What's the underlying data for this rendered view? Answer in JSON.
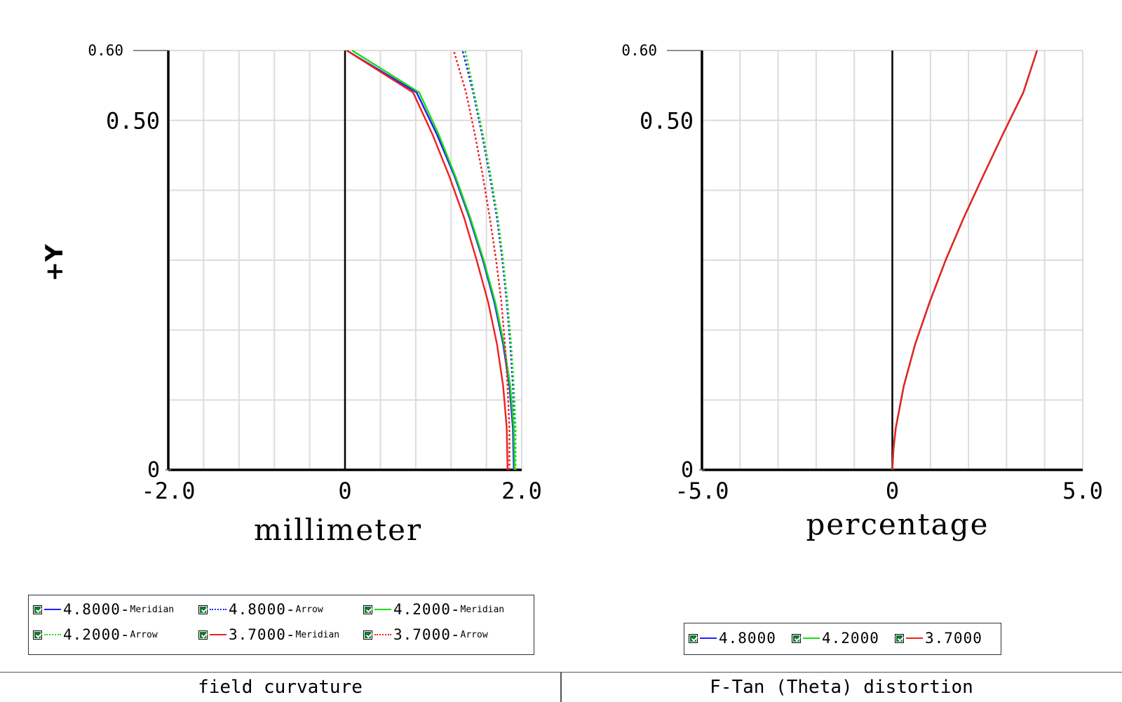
{
  "chart_data": [
    {
      "type": "line",
      "title": "",
      "xlabel": "millimeter",
      "ylabel": "+Y",
      "xlim": [
        -2.0,
        2.0
      ],
      "ylim": [
        0,
        0.6
      ],
      "x_ticks": [
        "-2.0",
        "0",
        "2.0"
      ],
      "y_ticks": [
        "0",
        "0.50",
        "0.60"
      ],
      "grid": true,
      "legend_position": "bottom",
      "series": [
        {
          "name": "4.8000-Meridian",
          "color": "#2020ff",
          "style": "solid",
          "points": [
            [
              1.91,
              0
            ],
            [
              1.9,
              0.06
            ],
            [
              1.86,
              0.12
            ],
            [
              1.79,
              0.18
            ],
            [
              1.69,
              0.24
            ],
            [
              1.56,
              0.3
            ],
            [
              1.41,
              0.36
            ],
            [
              1.24,
              0.42
            ],
            [
              1.04,
              0.48
            ],
            [
              0.81,
              0.54
            ],
            [
              0.02,
              0.6
            ]
          ]
        },
        {
          "name": "4.8000-Arrow",
          "color": "#2020ff",
          "style": "dotted",
          "points": [
            [
              1.92,
              0
            ],
            [
              1.92,
              0.06
            ],
            [
              1.9,
              0.12
            ],
            [
              1.87,
              0.18
            ],
            [
              1.83,
              0.24
            ],
            [
              1.78,
              0.3
            ],
            [
              1.72,
              0.36
            ],
            [
              1.64,
              0.42
            ],
            [
              1.55,
              0.48
            ],
            [
              1.45,
              0.54
            ],
            [
              1.33,
              0.6
            ]
          ]
        },
        {
          "name": "4.2000-Meridian",
          "color": "#18dd18",
          "style": "solid",
          "points": [
            [
              1.92,
              0
            ],
            [
              1.91,
              0.06
            ],
            [
              1.87,
              0.12
            ],
            [
              1.8,
              0.18
            ],
            [
              1.7,
              0.24
            ],
            [
              1.57,
              0.3
            ],
            [
              1.42,
              0.36
            ],
            [
              1.25,
              0.42
            ],
            [
              1.06,
              0.48
            ],
            [
              0.84,
              0.54
            ],
            [
              0.08,
              0.6
            ]
          ]
        },
        {
          "name": "4.2000-Arrow",
          "color": "#18dd18",
          "style": "dotted",
          "points": [
            [
              1.93,
              0
            ],
            [
              1.93,
              0.06
            ],
            [
              1.91,
              0.12
            ],
            [
              1.88,
              0.18
            ],
            [
              1.84,
              0.24
            ],
            [
              1.79,
              0.3
            ],
            [
              1.73,
              0.36
            ],
            [
              1.65,
              0.42
            ],
            [
              1.56,
              0.48
            ],
            [
              1.46,
              0.54
            ],
            [
              1.36,
              0.6
            ]
          ]
        },
        {
          "name": "3.7000-Meridian",
          "color": "#ee2020",
          "style": "solid",
          "points": [
            [
              1.84,
              0
            ],
            [
              1.83,
              0.06
            ],
            [
              1.79,
              0.12
            ],
            [
              1.72,
              0.18
            ],
            [
              1.62,
              0.24
            ],
            [
              1.49,
              0.3
            ],
            [
              1.35,
              0.36
            ],
            [
              1.18,
              0.42
            ],
            [
              0.99,
              0.48
            ],
            [
              0.77,
              0.54
            ],
            [
              0.02,
              0.6
            ]
          ]
        },
        {
          "name": "3.7000-Arrow",
          "color": "#ee2020",
          "style": "dotted",
          "points": [
            [
              1.86,
              0
            ],
            [
              1.86,
              0.06
            ],
            [
              1.84,
              0.12
            ],
            [
              1.81,
              0.18
            ],
            [
              1.77,
              0.24
            ],
            [
              1.71,
              0.3
            ],
            [
              1.64,
              0.36
            ],
            [
              1.56,
              0.42
            ],
            [
              1.47,
              0.48
            ],
            [
              1.37,
              0.54
            ],
            [
              1.23,
              0.6
            ]
          ]
        }
      ]
    },
    {
      "type": "line",
      "title": "",
      "xlabel": "percentage",
      "ylabel": "",
      "xlim": [
        -5.0,
        5.0
      ],
      "ylim": [
        0,
        0.6
      ],
      "x_ticks": [
        "-5.0",
        "0",
        "5.0"
      ],
      "y_ticks": [
        "0",
        "0.50",
        "0.60"
      ],
      "grid": true,
      "legend_position": "bottom",
      "series": [
        {
          "name": "4.8000",
          "color": "#2020ff",
          "style": "solid",
          "points": [
            [
              0,
              0
            ],
            [
              0.03,
              0.03
            ],
            [
              0.09,
              0.06
            ],
            [
              0.3,
              0.12
            ],
            [
              0.6,
              0.18
            ],
            [
              0.98,
              0.24
            ],
            [
              1.4,
              0.3
            ],
            [
              1.87,
              0.36
            ],
            [
              2.38,
              0.42
            ],
            [
              2.9,
              0.48
            ],
            [
              3.44,
              0.54
            ],
            [
              3.8,
              0.6
            ]
          ]
        },
        {
          "name": "4.2000",
          "color": "#18dd18",
          "style": "solid",
          "points": [
            [
              0,
              0
            ],
            [
              0.03,
              0.03
            ],
            [
              0.09,
              0.06
            ],
            [
              0.3,
              0.12
            ],
            [
              0.6,
              0.18
            ],
            [
              0.98,
              0.24
            ],
            [
              1.4,
              0.3
            ],
            [
              1.87,
              0.36
            ],
            [
              2.38,
              0.42
            ],
            [
              2.9,
              0.48
            ],
            [
              3.44,
              0.54
            ],
            [
              3.8,
              0.6
            ]
          ]
        },
        {
          "name": "3.7000",
          "color": "#ee2020",
          "style": "solid",
          "points": [
            [
              0,
              0
            ],
            [
              0.03,
              0.03
            ],
            [
              0.09,
              0.06
            ],
            [
              0.3,
              0.12
            ],
            [
              0.6,
              0.18
            ],
            [
              0.98,
              0.24
            ],
            [
              1.4,
              0.3
            ],
            [
              1.87,
              0.36
            ],
            [
              2.38,
              0.42
            ],
            [
              2.9,
              0.48
            ],
            [
              3.44,
              0.54
            ],
            [
              3.8,
              0.6
            ]
          ]
        }
      ]
    }
  ],
  "legends": {
    "left": [
      {
        "value": "4.8000",
        "type": "Meridian",
        "color": "#2020ff",
        "style": "solid"
      },
      {
        "value": "4.8000",
        "type": "Arrow",
        "color": "#2020ff",
        "style": "dotted"
      },
      {
        "value": "4.2000",
        "type": "Meridian",
        "color": "#18dd18",
        "style": "solid"
      },
      {
        "value": "4.2000",
        "type": "Arrow",
        "color": "#18dd18",
        "style": "dotted"
      },
      {
        "value": "3.7000",
        "type": "Meridian",
        "color": "#ee2020",
        "style": "solid"
      },
      {
        "value": "3.7000",
        "type": "Arrow",
        "color": "#ee2020",
        "style": "dotted"
      }
    ],
    "right": [
      {
        "value": "4.8000",
        "color": "#2020ff"
      },
      {
        "value": "4.2000",
        "color": "#18dd18"
      },
      {
        "value": "3.7000",
        "color": "#ee2020"
      }
    ]
  },
  "footer": {
    "left": "field curvature",
    "right": "F-Tan (Theta) distortion"
  }
}
